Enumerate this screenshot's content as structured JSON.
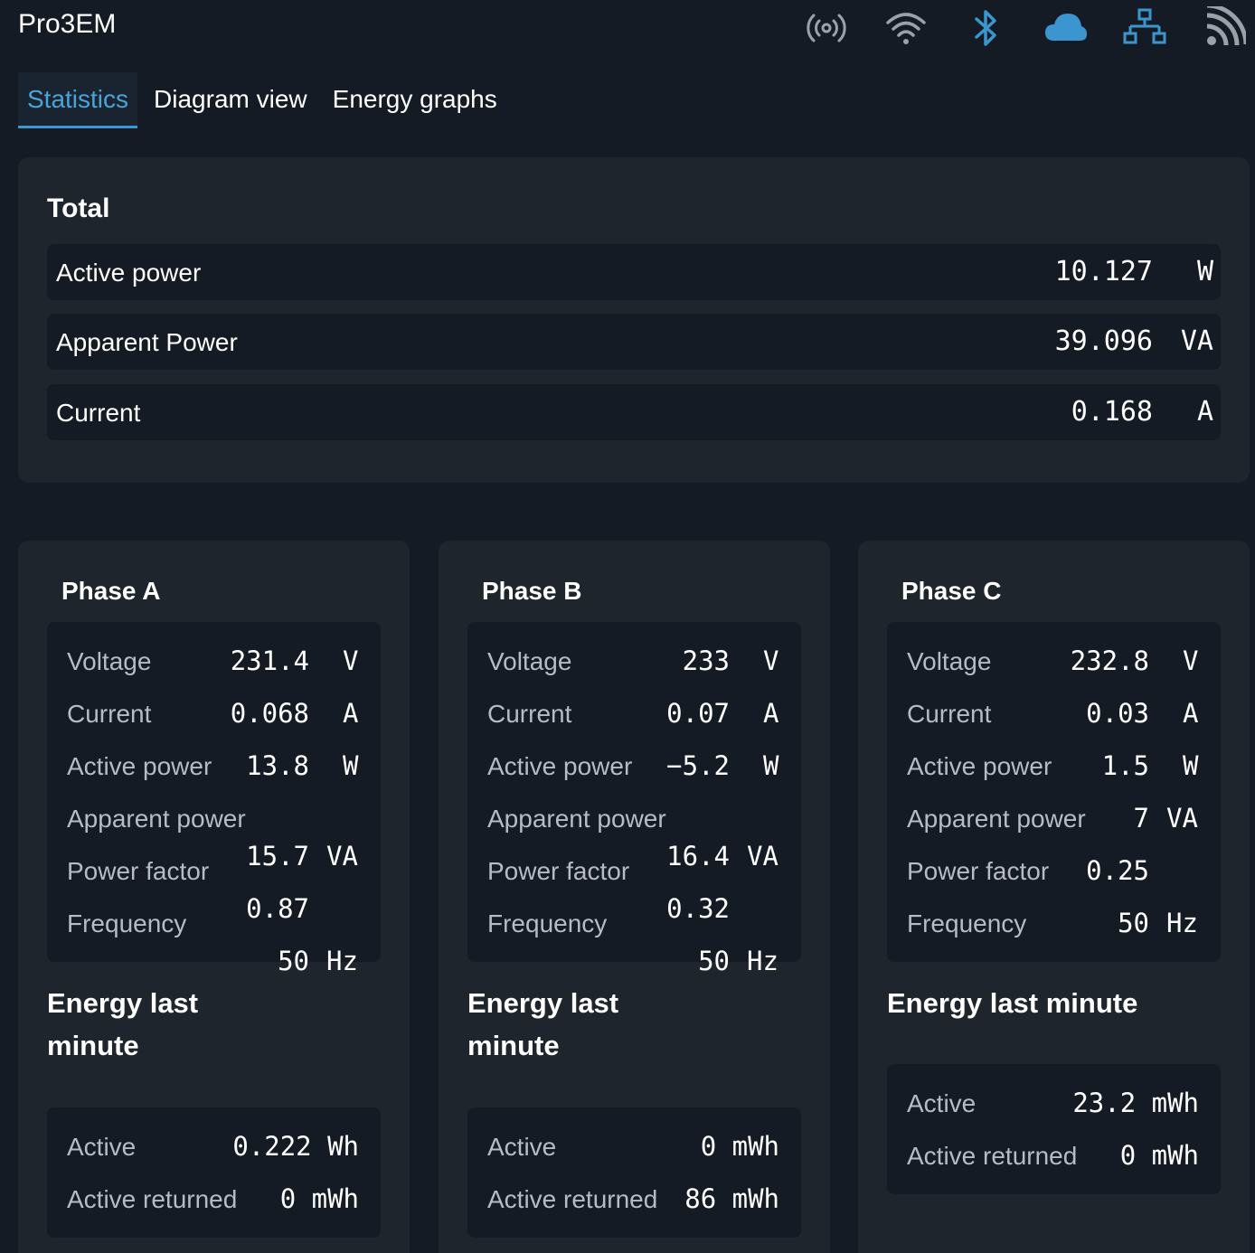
{
  "app": {
    "title": "Pro3EM"
  },
  "header_icons": [
    "radio-signal-icon",
    "wifi-icon",
    "bluetooth-icon",
    "cloud-icon",
    "ethernet-network-icon",
    "rss-feed-icon"
  ],
  "colors": {
    "accent": "#3b95cf",
    "background": "#141b24",
    "card": "#1f252c",
    "muted_label": "#b5bcc3"
  },
  "tabs": [
    {
      "label": "Statistics",
      "active": true
    },
    {
      "label": "Diagram view",
      "active": false
    },
    {
      "label": "Energy graphs",
      "active": false
    }
  ],
  "total": {
    "title": "Total",
    "rows": [
      {
        "label": "Active power",
        "value": "10.127",
        "unit": "W"
      },
      {
        "label": "Apparent Power",
        "value": "39.096",
        "unit": "VA"
      },
      {
        "label": "Current",
        "value": "0.168",
        "unit": "A"
      }
    ]
  },
  "phases": [
    {
      "title": "Phase A",
      "labels": {
        "voltage": "Voltage",
        "current": "Current",
        "active_power": "Active power",
        "apparent_power": "Apparent power",
        "power_factor": "Power factor",
        "frequency": "Frequency"
      },
      "values": {
        "voltage": "231.4",
        "current": "0.068",
        "active_power": "13.8",
        "apparent_power": "15.7",
        "power_factor": "0.87",
        "frequency": "50"
      },
      "units": {
        "voltage": "V",
        "current": "A",
        "active_power": "W",
        "apparent_power": "VA",
        "frequency": "Hz"
      },
      "energy_title": "Energy last minute",
      "energy": {
        "active_label": "Active",
        "active_value": "0.222 Wh",
        "returned_label": "Active returned",
        "returned_value": "0 mWh"
      }
    },
    {
      "title": "Phase B",
      "labels": {
        "voltage": "Voltage",
        "current": "Current",
        "active_power": "Active power",
        "apparent_power": "Apparent power",
        "power_factor": "Power factor",
        "frequency": "Frequency"
      },
      "values": {
        "voltage": "233",
        "current": "0.07",
        "active_power": "−5.2",
        "apparent_power": "16.4",
        "power_factor": "0.32",
        "frequency": "50"
      },
      "units": {
        "voltage": "V",
        "current": "A",
        "active_power": "W",
        "apparent_power": "VA",
        "frequency": "Hz"
      },
      "energy_title": "Energy last minute",
      "energy": {
        "active_label": "Active",
        "active_value": "0 mWh",
        "returned_label": "Active returned",
        "returned_value": "86 mWh"
      }
    },
    {
      "title": "Phase C",
      "labels": {
        "voltage": "Voltage",
        "current": "Current",
        "active_power": "Active power",
        "apparent_power": "Apparent power",
        "power_factor": "Power factor",
        "frequency": "Frequency"
      },
      "values": {
        "voltage": "232.8",
        "current": "0.03",
        "active_power": "1.5",
        "apparent_power": "7",
        "power_factor": "0.25",
        "frequency": "50"
      },
      "units": {
        "voltage": "V",
        "current": "A",
        "active_power": "W",
        "apparent_power": "VA",
        "frequency": "Hz"
      },
      "energy_title": "Energy last minute",
      "energy": {
        "active_label": "Active",
        "active_value": "23.2 mWh",
        "returned_label": "Active returned",
        "returned_value": "0 mWh"
      }
    }
  ]
}
